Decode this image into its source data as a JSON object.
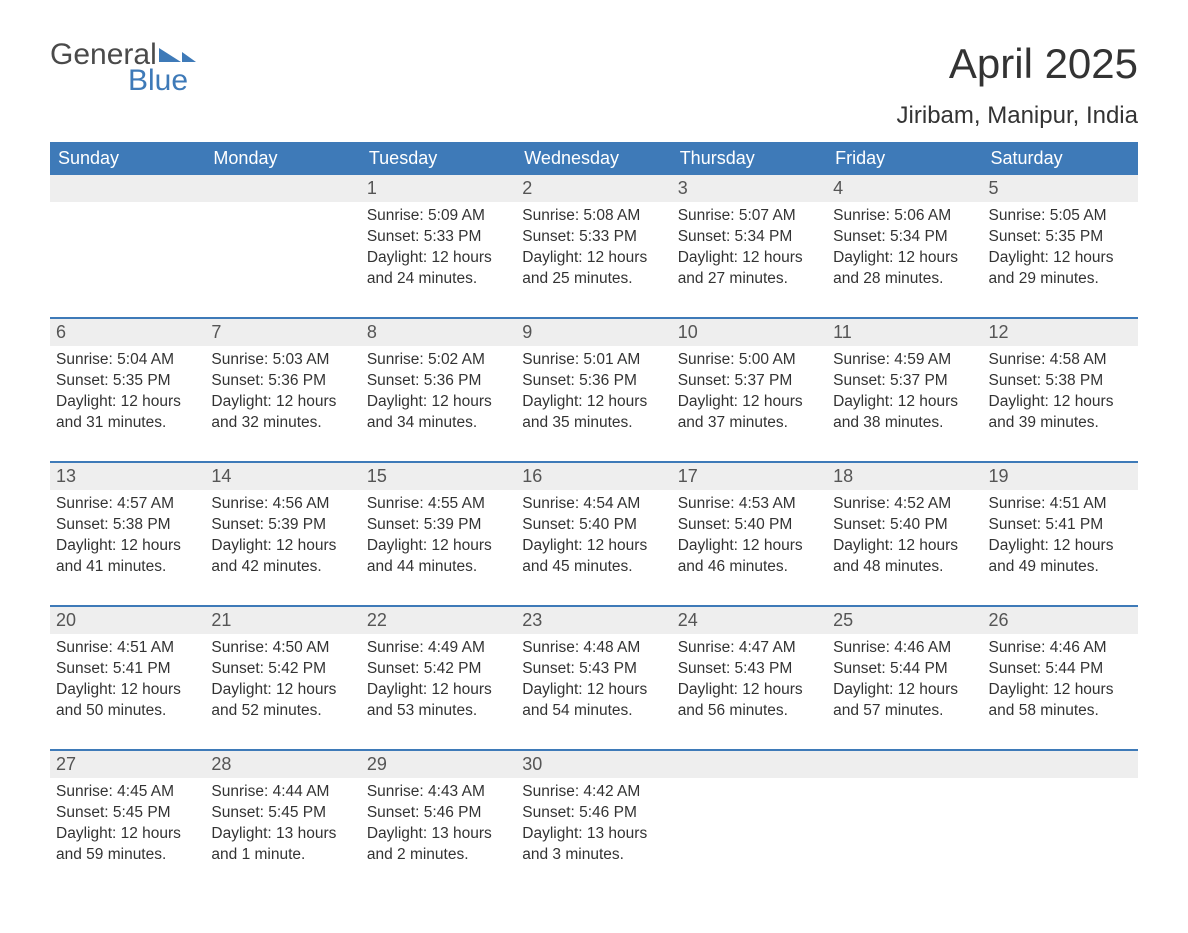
{
  "logo": {
    "text1": "General",
    "text2": "Blue"
  },
  "title": "April 2025",
  "location": "Jiribam, Manipur, India",
  "colors": {
    "header_bg": "#3e7ab8",
    "header_fg": "#ffffff",
    "daynum_bg": "#eeeeee",
    "border": "#3e7ab8",
    "logo_blue": "#3e7ab8",
    "logo_gray": "#4a4a4a"
  },
  "weekdays": [
    "Sunday",
    "Monday",
    "Tuesday",
    "Wednesday",
    "Thursday",
    "Friday",
    "Saturday"
  ],
  "weeks": [
    [
      {
        "day": "",
        "sunrise": "",
        "sunset": "",
        "daylight": ""
      },
      {
        "day": "",
        "sunrise": "",
        "sunset": "",
        "daylight": ""
      },
      {
        "day": "1",
        "sunrise": "Sunrise: 5:09 AM",
        "sunset": "Sunset: 5:33 PM",
        "daylight": "Daylight: 12 hours and 24 minutes."
      },
      {
        "day": "2",
        "sunrise": "Sunrise: 5:08 AM",
        "sunset": "Sunset: 5:33 PM",
        "daylight": "Daylight: 12 hours and 25 minutes."
      },
      {
        "day": "3",
        "sunrise": "Sunrise: 5:07 AM",
        "sunset": "Sunset: 5:34 PM",
        "daylight": "Daylight: 12 hours and 27 minutes."
      },
      {
        "day": "4",
        "sunrise": "Sunrise: 5:06 AM",
        "sunset": "Sunset: 5:34 PM",
        "daylight": "Daylight: 12 hours and 28 minutes."
      },
      {
        "day": "5",
        "sunrise": "Sunrise: 5:05 AM",
        "sunset": "Sunset: 5:35 PM",
        "daylight": "Daylight: 12 hours and 29 minutes."
      }
    ],
    [
      {
        "day": "6",
        "sunrise": "Sunrise: 5:04 AM",
        "sunset": "Sunset: 5:35 PM",
        "daylight": "Daylight: 12 hours and 31 minutes."
      },
      {
        "day": "7",
        "sunrise": "Sunrise: 5:03 AM",
        "sunset": "Sunset: 5:36 PM",
        "daylight": "Daylight: 12 hours and 32 minutes."
      },
      {
        "day": "8",
        "sunrise": "Sunrise: 5:02 AM",
        "sunset": "Sunset: 5:36 PM",
        "daylight": "Daylight: 12 hours and 34 minutes."
      },
      {
        "day": "9",
        "sunrise": "Sunrise: 5:01 AM",
        "sunset": "Sunset: 5:36 PM",
        "daylight": "Daylight: 12 hours and 35 minutes."
      },
      {
        "day": "10",
        "sunrise": "Sunrise: 5:00 AM",
        "sunset": "Sunset: 5:37 PM",
        "daylight": "Daylight: 12 hours and 37 minutes."
      },
      {
        "day": "11",
        "sunrise": "Sunrise: 4:59 AM",
        "sunset": "Sunset: 5:37 PM",
        "daylight": "Daylight: 12 hours and 38 minutes."
      },
      {
        "day": "12",
        "sunrise": "Sunrise: 4:58 AM",
        "sunset": "Sunset: 5:38 PM",
        "daylight": "Daylight: 12 hours and 39 minutes."
      }
    ],
    [
      {
        "day": "13",
        "sunrise": "Sunrise: 4:57 AM",
        "sunset": "Sunset: 5:38 PM",
        "daylight": "Daylight: 12 hours and 41 minutes."
      },
      {
        "day": "14",
        "sunrise": "Sunrise: 4:56 AM",
        "sunset": "Sunset: 5:39 PM",
        "daylight": "Daylight: 12 hours and 42 minutes."
      },
      {
        "day": "15",
        "sunrise": "Sunrise: 4:55 AM",
        "sunset": "Sunset: 5:39 PM",
        "daylight": "Daylight: 12 hours and 44 minutes."
      },
      {
        "day": "16",
        "sunrise": "Sunrise: 4:54 AM",
        "sunset": "Sunset: 5:40 PM",
        "daylight": "Daylight: 12 hours and 45 minutes."
      },
      {
        "day": "17",
        "sunrise": "Sunrise: 4:53 AM",
        "sunset": "Sunset: 5:40 PM",
        "daylight": "Daylight: 12 hours and 46 minutes."
      },
      {
        "day": "18",
        "sunrise": "Sunrise: 4:52 AM",
        "sunset": "Sunset: 5:40 PM",
        "daylight": "Daylight: 12 hours and 48 minutes."
      },
      {
        "day": "19",
        "sunrise": "Sunrise: 4:51 AM",
        "sunset": "Sunset: 5:41 PM",
        "daylight": "Daylight: 12 hours and 49 minutes."
      }
    ],
    [
      {
        "day": "20",
        "sunrise": "Sunrise: 4:51 AM",
        "sunset": "Sunset: 5:41 PM",
        "daylight": "Daylight: 12 hours and 50 minutes."
      },
      {
        "day": "21",
        "sunrise": "Sunrise: 4:50 AM",
        "sunset": "Sunset: 5:42 PM",
        "daylight": "Daylight: 12 hours and 52 minutes."
      },
      {
        "day": "22",
        "sunrise": "Sunrise: 4:49 AM",
        "sunset": "Sunset: 5:42 PM",
        "daylight": "Daylight: 12 hours and 53 minutes."
      },
      {
        "day": "23",
        "sunrise": "Sunrise: 4:48 AM",
        "sunset": "Sunset: 5:43 PM",
        "daylight": "Daylight: 12 hours and 54 minutes."
      },
      {
        "day": "24",
        "sunrise": "Sunrise: 4:47 AM",
        "sunset": "Sunset: 5:43 PM",
        "daylight": "Daylight: 12 hours and 56 minutes."
      },
      {
        "day": "25",
        "sunrise": "Sunrise: 4:46 AM",
        "sunset": "Sunset: 5:44 PM",
        "daylight": "Daylight: 12 hours and 57 minutes."
      },
      {
        "day": "26",
        "sunrise": "Sunrise: 4:46 AM",
        "sunset": "Sunset: 5:44 PM",
        "daylight": "Daylight: 12 hours and 58 minutes."
      }
    ],
    [
      {
        "day": "27",
        "sunrise": "Sunrise: 4:45 AM",
        "sunset": "Sunset: 5:45 PM",
        "daylight": "Daylight: 12 hours and 59 minutes."
      },
      {
        "day": "28",
        "sunrise": "Sunrise: 4:44 AM",
        "sunset": "Sunset: 5:45 PM",
        "daylight": "Daylight: 13 hours and 1 minute."
      },
      {
        "day": "29",
        "sunrise": "Sunrise: 4:43 AM",
        "sunset": "Sunset: 5:46 PM",
        "daylight": "Daylight: 13 hours and 2 minutes."
      },
      {
        "day": "30",
        "sunrise": "Sunrise: 4:42 AM",
        "sunset": "Sunset: 5:46 PM",
        "daylight": "Daylight: 13 hours and 3 minutes."
      },
      {
        "day": "",
        "sunrise": "",
        "sunset": "",
        "daylight": ""
      },
      {
        "day": "",
        "sunrise": "",
        "sunset": "",
        "daylight": ""
      },
      {
        "day": "",
        "sunrise": "",
        "sunset": "",
        "daylight": ""
      }
    ]
  ]
}
